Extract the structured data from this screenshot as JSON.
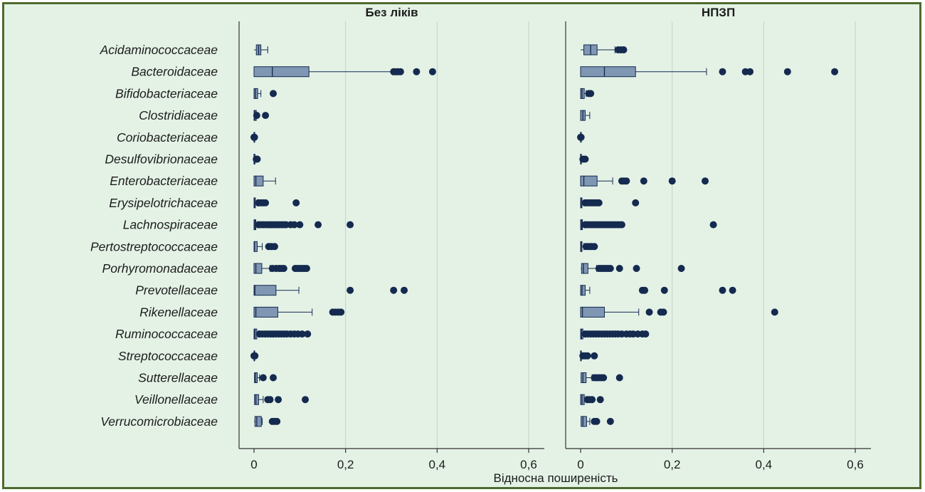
{
  "colors": {
    "frame_border": "#4d6b2e",
    "background": "#e4f2e6",
    "box_fill": "#7f97b3",
    "mark": "#152a4f",
    "grid": "#c5d0c8"
  },
  "chart_data": {
    "type": "boxplot",
    "orientation": "horizontal",
    "xlabel": "Відносна поширеність",
    "xlim": [
      0,
      0.6
    ],
    "xticks": [
      0,
      0.2,
      0.4,
      0.6
    ],
    "xtick_labels": [
      "0",
      "0,2",
      "0,4",
      "0,6"
    ],
    "grid": true,
    "categories": [
      "Acidaminococcaceae",
      "Bacteroidaceae",
      "Bifidobacteriaceae",
      "Clostridiaceae",
      "Coriobacteriaceae",
      "Desulfovibrionaceae",
      "Enterobacteriaceae",
      "Erysipelotrichaceae",
      "Lachnospiraceae",
      "Pertostreptococcaceae",
      "Porhyromonadaceae",
      "Prevotellaceae",
      "Rikenellaceae",
      "Ruminococcaceae",
      "Streptococcaceae",
      "Sutterellaceae",
      "Veillonellaceae",
      "Verrucomicrobiaceae"
    ],
    "panels": [
      {
        "title": "Без ліків",
        "boxes": [
          {
            "whisker_low": 0,
            "q1": 0.005,
            "median": 0.01,
            "q3": 0.015,
            "whisker_high": 0.03,
            "outliers": []
          },
          {
            "whisker_low": 0,
            "q1": 0,
            "median": 0.04,
            "q3": 0.12,
            "whisker_high": 0.305,
            "outliers": [
              0.305,
              0.31,
              0.315,
              0.32,
              0.355,
              0.39
            ]
          },
          {
            "whisker_low": 0,
            "q1": 0,
            "median": 0.003,
            "q3": 0.008,
            "whisker_high": 0.015,
            "outliers": [
              0.042
            ]
          },
          {
            "whisker_low": 0,
            "q1": 0,
            "median": 0.002,
            "q3": 0.005,
            "whisker_high": 0.006,
            "outliers": [
              0.006,
              0.025
            ]
          },
          {
            "whisker_low": 0,
            "q1": 0,
            "median": 0,
            "q3": 0,
            "whisker_high": 0,
            "outliers": [
              0,
              0.001
            ]
          },
          {
            "whisker_low": 0,
            "q1": 0,
            "median": 0,
            "q3": 0.002,
            "whisker_high": 0.003,
            "outliers": [
              0.005,
              0.007
            ]
          },
          {
            "whisker_low": 0,
            "q1": 0,
            "median": 0.004,
            "q3": 0.02,
            "whisker_high": 0.047,
            "outliers": []
          },
          {
            "whisker_low": 0,
            "q1": 0,
            "median": 0.001,
            "q3": 0.003,
            "whisker_high": 0.007,
            "outliers": [
              0.01,
              0.015,
              0.02,
              0.025,
              0.092
            ]
          },
          {
            "whisker_low": 0,
            "q1": 0,
            "median": 0.002,
            "q3": 0.004,
            "whisker_high": 0.008,
            "outliers": [
              0.01,
              0.015,
              0.02,
              0.025,
              0.03,
              0.035,
              0.04,
              0.045,
              0.05,
              0.055,
              0.06,
              0.065,
              0.07,
              0.08,
              0.088,
              0.1,
              0.14,
              0.21
            ]
          },
          {
            "whisker_low": 0,
            "q1": 0,
            "median": 0.001,
            "q3": 0.007,
            "whisker_high": 0.018,
            "outliers": [
              0.032,
              0.038,
              0.045
            ]
          },
          {
            "whisker_low": 0,
            "q1": 0,
            "median": 0.004,
            "q3": 0.017,
            "whisker_high": 0.035,
            "outliers": [
              0.04,
              0.048,
              0.055,
              0.06,
              0.065,
              0.09,
              0.095,
              0.1,
              0.105,
              0.11,
              0.115
            ]
          },
          {
            "whisker_low": 0,
            "q1": 0,
            "median": 0.002,
            "q3": 0.048,
            "whisker_high": 0.098,
            "outliers": [
              0.21,
              0.305,
              0.328
            ]
          },
          {
            "whisker_low": 0,
            "q1": 0,
            "median": 0.004,
            "q3": 0.052,
            "whisker_high": 0.127,
            "outliers": [
              0.172,
              0.178,
              0.184,
              0.19
            ]
          },
          {
            "whisker_low": 0,
            "q1": 0,
            "median": 0.002,
            "q3": 0.006,
            "whisker_high": 0.01,
            "outliers": [
              0.012,
              0.018,
              0.024,
              0.03,
              0.036,
              0.042,
              0.048,
              0.054,
              0.06,
              0.066,
              0.072,
              0.08,
              0.088,
              0.096,
              0.105,
              0.117
            ]
          },
          {
            "whisker_low": 0,
            "q1": 0,
            "median": 0,
            "q3": 0,
            "whisker_high": 0,
            "outliers": [
              0,
              0.002
            ]
          },
          {
            "whisker_low": 0,
            "q1": 0.001,
            "median": 0.003,
            "q3": 0.007,
            "whisker_high": 0.012,
            "outliers": [
              0.02,
              0.042
            ]
          },
          {
            "whisker_low": 0,
            "q1": 0.001,
            "median": 0.004,
            "q3": 0.01,
            "whisker_high": 0.02,
            "outliers": [
              0.03,
              0.035,
              0.053,
              0.112
            ]
          },
          {
            "whisker_low": 0,
            "q1": 0.002,
            "median": 0.006,
            "q3": 0.016,
            "whisker_high": 0.018,
            "outliers": [
              0.04,
              0.045,
              0.05
            ]
          }
        ]
      },
      {
        "title": "НПЗП",
        "boxes": [
          {
            "whisker_low": 0,
            "q1": 0.007,
            "median": 0.022,
            "q3": 0.036,
            "whisker_high": 0.075,
            "outliers": [
              0.082,
              0.088,
              0.094
            ]
          },
          {
            "whisker_low": 0,
            "q1": 0,
            "median": 0.052,
            "q3": 0.12,
            "whisker_high": 0.275,
            "outliers": [
              0.31,
              0.36,
              0.37,
              0.452,
              0.555
            ]
          },
          {
            "whisker_low": 0,
            "q1": 0,
            "median": 0.003,
            "q3": 0.008,
            "whisker_high": 0.012,
            "outliers": [
              0.018,
              0.022
            ]
          },
          {
            "whisker_low": 0,
            "q1": 0,
            "median": 0.005,
            "q3": 0.01,
            "whisker_high": 0.02,
            "outliers": []
          },
          {
            "whisker_low": 0,
            "q1": 0,
            "median": 0,
            "q3": 0,
            "whisker_high": 0,
            "outliers": [
              0,
              0.001
            ]
          },
          {
            "whisker_low": 0,
            "q1": 0,
            "median": 0,
            "q3": 0.001,
            "whisker_high": 0.002,
            "outliers": [
              0.005,
              0.01
            ]
          },
          {
            "whisker_low": 0,
            "q1": 0,
            "median": 0.007,
            "q3": 0.036,
            "whisker_high": 0.07,
            "outliers": [
              0.09,
              0.095,
              0.1,
              0.138,
              0.2,
              0.272
            ]
          },
          {
            "whisker_low": 0,
            "q1": 0,
            "median": 0.001,
            "q3": 0.003,
            "whisker_high": 0.007,
            "outliers": [
              0.01,
              0.015,
              0.02,
              0.025,
              0.03,
              0.035,
              0.04,
              0.12
            ]
          },
          {
            "whisker_low": 0,
            "q1": 0,
            "median": 0.002,
            "q3": 0.004,
            "whisker_high": 0.008,
            "outliers": [
              0.01,
              0.015,
              0.02,
              0.025,
              0.03,
              0.035,
              0.04,
              0.045,
              0.05,
              0.055,
              0.06,
              0.065,
              0.07,
              0.075,
              0.08,
              0.085,
              0.09,
              0.29
            ]
          },
          {
            "whisker_low": 0,
            "q1": 0,
            "median": 0.001,
            "q3": 0.003,
            "whisker_high": 0.007,
            "outliers": [
              0.012,
              0.018,
              0.024,
              0.03
            ]
          },
          {
            "whisker_low": 0,
            "q1": 0.002,
            "median": 0.006,
            "q3": 0.016,
            "whisker_high": 0.035,
            "outliers": [
              0.04,
              0.045,
              0.05,
              0.055,
              0.06,
              0.065,
              0.085,
              0.122,
              0.22
            ]
          },
          {
            "whisker_low": 0,
            "q1": 0,
            "median": 0.003,
            "q3": 0.01,
            "whisker_high": 0.02,
            "outliers": [
              0.135,
              0.14,
              0.183,
              0.31,
              0.332
            ]
          },
          {
            "whisker_low": 0,
            "q1": 0,
            "median": 0.004,
            "q3": 0.052,
            "whisker_high": 0.127,
            "outliers": [
              0.15,
              0.175,
              0.181,
              0.424
            ]
          },
          {
            "whisker_low": 0,
            "q1": 0,
            "median": 0.002,
            "q3": 0.005,
            "whisker_high": 0.008,
            "outliers": [
              0.01,
              0.016,
              0.022,
              0.028,
              0.034,
              0.04,
              0.046,
              0.052,
              0.058,
              0.064,
              0.07,
              0.076,
              0.082,
              0.09,
              0.1,
              0.108,
              0.115,
              0.125,
              0.135,
              0.142
            ]
          },
          {
            "whisker_low": 0,
            "q1": 0,
            "median": 0,
            "q3": 0.001,
            "whisker_high": 0.002,
            "outliers": [
              0.005,
              0.01,
              0.015,
              0.03
            ]
          },
          {
            "whisker_low": 0,
            "q1": 0.001,
            "median": 0.005,
            "q3": 0.012,
            "whisker_high": 0.025,
            "outliers": [
              0.03,
              0.035,
              0.04,
              0.045,
              0.05,
              0.085
            ]
          },
          {
            "whisker_low": 0,
            "q1": 0,
            "median": 0.003,
            "q3": 0.008,
            "whisker_high": 0.012,
            "outliers": [
              0.015,
              0.02,
              0.025,
              0.043
            ]
          },
          {
            "whisker_low": 0,
            "q1": 0.001,
            "median": 0.005,
            "q3": 0.013,
            "whisker_high": 0.02,
            "outliers": [
              0.03,
              0.035,
              0.065
            ]
          }
        ]
      }
    ]
  }
}
